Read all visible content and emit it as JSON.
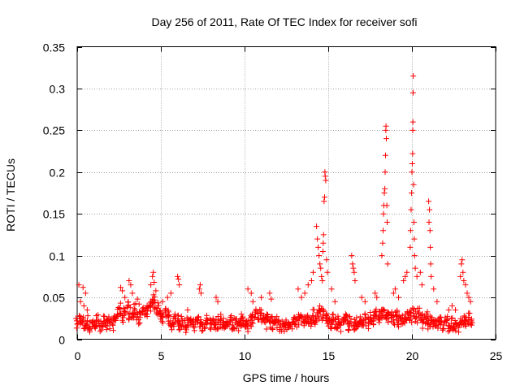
{
  "chart_data": {
    "type": "scatter",
    "title": "Day 256 of 2011, Rate Of TEC Index for receiver sofi",
    "xlabel": "GPS time / hours",
    "ylabel": "ROTI / TECUs",
    "xlim": [
      0,
      25
    ],
    "ylim": [
      0,
      0.35
    ],
    "x_ticks": [
      0,
      5,
      10,
      15,
      20,
      25
    ],
    "x_tick_labels": [
      "0",
      "5",
      "10",
      "15",
      "20",
      "25"
    ],
    "y_ticks": [
      0,
      0.05,
      0.1,
      0.15,
      0.2,
      0.25,
      0.3,
      0.35
    ],
    "y_tick_labels": [
      "0",
      "0.05",
      "0.1",
      "0.15",
      "0.2",
      "0.25",
      "0.3",
      "0.35"
    ],
    "grid": true,
    "marker": "+",
    "color": "#ff0000",
    "baseline_points": [
      [
        0.0,
        0.018
      ],
      [
        0.15,
        0.025
      ],
      [
        0.3,
        0.02
      ],
      [
        0.45,
        0.016
      ],
      [
        0.6,
        0.022
      ],
      [
        0.75,
        0.014
      ],
      [
        0.9,
        0.02
      ],
      [
        1.05,
        0.017
      ],
      [
        1.2,
        0.023
      ],
      [
        1.35,
        0.015
      ],
      [
        1.5,
        0.019
      ],
      [
        1.65,
        0.021
      ],
      [
        1.8,
        0.016
      ],
      [
        1.95,
        0.02
      ],
      [
        2.1,
        0.018
      ],
      [
        2.25,
        0.024
      ],
      [
        2.4,
        0.03
      ],
      [
        2.55,
        0.036
      ],
      [
        2.7,
        0.028
      ],
      [
        2.85,
        0.033
      ],
      [
        3.0,
        0.038
      ],
      [
        3.15,
        0.031
      ],
      [
        3.3,
        0.027
      ],
      [
        3.45,
        0.035
      ],
      [
        3.6,
        0.03
      ],
      [
        3.75,
        0.026
      ],
      [
        3.9,
        0.033
      ],
      [
        4.05,
        0.029
      ],
      [
        4.2,
        0.034
      ],
      [
        4.35,
        0.04
      ],
      [
        4.5,
        0.048
      ],
      [
        4.65,
        0.044
      ],
      [
        4.8,
        0.037
      ],
      [
        4.95,
        0.03
      ],
      [
        5.1,
        0.026
      ],
      [
        5.25,
        0.034
      ],
      [
        5.4,
        0.028
      ],
      [
        5.55,
        0.022
      ],
      [
        5.7,
        0.019
      ],
      [
        5.85,
        0.025
      ],
      [
        6.0,
        0.021
      ],
      [
        6.15,
        0.018
      ],
      [
        6.3,
        0.022
      ],
      [
        6.45,
        0.016
      ],
      [
        6.6,
        0.02
      ],
      [
        6.75,
        0.017
      ],
      [
        6.9,
        0.021
      ],
      [
        7.05,
        0.018
      ],
      [
        7.2,
        0.022
      ],
      [
        7.35,
        0.019
      ],
      [
        7.5,
        0.016
      ],
      [
        7.65,
        0.02
      ],
      [
        7.8,
        0.023
      ],
      [
        7.95,
        0.018
      ],
      [
        8.1,
        0.021
      ],
      [
        8.25,
        0.017
      ],
      [
        8.4,
        0.02
      ],
      [
        8.55,
        0.022
      ],
      [
        8.7,
        0.018
      ],
      [
        8.85,
        0.016
      ],
      [
        9.0,
        0.019
      ],
      [
        9.15,
        0.021
      ],
      [
        9.3,
        0.017
      ],
      [
        9.45,
        0.02
      ],
      [
        9.6,
        0.018
      ],
      [
        9.75,
        0.022
      ],
      [
        9.9,
        0.019
      ],
      [
        10.05,
        0.021
      ],
      [
        10.2,
        0.017
      ],
      [
        10.35,
        0.023
      ],
      [
        10.5,
        0.027
      ],
      [
        10.65,
        0.03
      ],
      [
        10.8,
        0.025
      ],
      [
        10.95,
        0.028
      ],
      [
        11.1,
        0.024
      ],
      [
        11.25,
        0.02
      ],
      [
        11.4,
        0.026
      ],
      [
        11.55,
        0.022
      ],
      [
        11.7,
        0.019
      ],
      [
        11.85,
        0.024
      ],
      [
        12.0,
        0.02
      ],
      [
        12.15,
        0.017
      ],
      [
        12.3,
        0.015
      ],
      [
        12.45,
        0.018
      ],
      [
        12.6,
        0.014
      ],
      [
        12.75,
        0.017
      ],
      [
        12.9,
        0.02
      ],
      [
        13.05,
        0.025
      ],
      [
        13.2,
        0.022
      ],
      [
        13.35,
        0.027
      ],
      [
        13.5,
        0.024
      ],
      [
        13.65,
        0.021
      ],
      [
        13.8,
        0.026
      ],
      [
        13.95,
        0.023
      ],
      [
        14.1,
        0.028
      ],
      [
        14.25,
        0.025
      ],
      [
        14.4,
        0.03
      ],
      [
        14.55,
        0.034
      ],
      [
        14.7,
        0.029
      ],
      [
        14.85,
        0.025
      ],
      [
        15.0,
        0.021
      ],
      [
        15.15,
        0.019
      ],
      [
        15.3,
        0.022
      ],
      [
        15.45,
        0.018
      ],
      [
        15.6,
        0.021
      ],
      [
        15.75,
        0.017
      ],
      [
        15.9,
        0.02
      ],
      [
        16.05,
        0.023
      ],
      [
        16.2,
        0.018
      ],
      [
        16.35,
        0.021
      ],
      [
        16.5,
        0.016
      ],
      [
        16.65,
        0.02
      ],
      [
        16.8,
        0.018
      ],
      [
        16.95,
        0.022
      ],
      [
        17.1,
        0.019
      ],
      [
        17.25,
        0.024
      ],
      [
        17.4,
        0.02
      ],
      [
        17.55,
        0.026
      ],
      [
        17.7,
        0.022
      ],
      [
        17.85,
        0.028
      ],
      [
        18.0,
        0.025
      ],
      [
        18.15,
        0.03
      ],
      [
        18.3,
        0.034
      ],
      [
        18.45,
        0.029
      ],
      [
        18.6,
        0.025
      ],
      [
        18.75,
        0.028
      ],
      [
        18.9,
        0.023
      ],
      [
        19.05,
        0.027
      ],
      [
        19.2,
        0.022
      ],
      [
        19.35,
        0.026
      ],
      [
        19.5,
        0.021
      ],
      [
        19.65,
        0.025
      ],
      [
        19.8,
        0.03
      ],
      [
        19.95,
        0.028
      ],
      [
        20.1,
        0.031
      ],
      [
        20.25,
        0.026
      ],
      [
        20.4,
        0.03
      ],
      [
        20.55,
        0.024
      ],
      [
        20.7,
        0.021
      ],
      [
        20.85,
        0.025
      ],
      [
        21.0,
        0.02
      ],
      [
        21.15,
        0.023
      ],
      [
        21.3,
        0.019
      ],
      [
        21.45,
        0.022
      ],
      [
        21.6,
        0.018
      ],
      [
        21.75,
        0.021
      ],
      [
        21.9,
        0.017
      ],
      [
        22.05,
        0.02
      ],
      [
        22.2,
        0.016
      ],
      [
        22.35,
        0.019
      ],
      [
        22.5,
        0.015
      ],
      [
        22.65,
        0.018
      ],
      [
        22.8,
        0.014
      ],
      [
        22.95,
        0.017
      ],
      [
        23.1,
        0.02
      ],
      [
        23.25,
        0.023
      ],
      [
        23.4,
        0.026
      ],
      [
        23.55,
        0.022
      ]
    ],
    "spike_points": [
      [
        0.1,
        0.065
      ],
      [
        0.2,
        0.045
      ],
      [
        0.35,
        0.062
      ],
      [
        0.4,
        0.04
      ],
      [
        0.5,
        0.055
      ],
      [
        0.6,
        0.035
      ],
      [
        2.6,
        0.062
      ],
      [
        2.7,
        0.058
      ],
      [
        2.85,
        0.05
      ],
      [
        3.1,
        0.07
      ],
      [
        3.2,
        0.065
      ],
      [
        3.3,
        0.055
      ],
      [
        3.6,
        0.048
      ],
      [
        3.7,
        0.042
      ],
      [
        4.4,
        0.065
      ],
      [
        4.5,
        0.075
      ],
      [
        4.55,
        0.08
      ],
      [
        4.6,
        0.068
      ],
      [
        4.7,
        0.058
      ],
      [
        5.1,
        0.045
      ],
      [
        5.4,
        0.05
      ],
      [
        5.6,
        0.055
      ],
      [
        6.0,
        0.075
      ],
      [
        6.05,
        0.072
      ],
      [
        6.1,
        0.065
      ],
      [
        6.6,
        0.035
      ],
      [
        7.3,
        0.06
      ],
      [
        7.35,
        0.065
      ],
      [
        7.4,
        0.055
      ],
      [
        8.3,
        0.05
      ],
      [
        8.4,
        0.045
      ],
      [
        10.2,
        0.06
      ],
      [
        10.4,
        0.055
      ],
      [
        10.5,
        0.045
      ],
      [
        11.0,
        0.05
      ],
      [
        11.5,
        0.055
      ],
      [
        11.6,
        0.048
      ],
      [
        13.2,
        0.06
      ],
      [
        13.4,
        0.05
      ],
      [
        13.6,
        0.055
      ],
      [
        13.8,
        0.065
      ],
      [
        14.0,
        0.07
      ],
      [
        14.1,
        0.08
      ],
      [
        14.3,
        0.135
      ],
      [
        14.35,
        0.12
      ],
      [
        14.4,
        0.11
      ],
      [
        14.45,
        0.1
      ],
      [
        14.5,
        0.09
      ],
      [
        14.55,
        0.085
      ],
      [
        14.6,
        0.075
      ],
      [
        14.65,
        0.07
      ],
      [
        14.8,
        0.2
      ],
      [
        14.82,
        0.195
      ],
      [
        14.85,
        0.19
      ],
      [
        14.78,
        0.17
      ],
      [
        14.75,
        0.165
      ],
      [
        14.72,
        0.125
      ],
      [
        14.7,
        0.115
      ],
      [
        14.68,
        0.105
      ],
      [
        14.9,
        0.095
      ],
      [
        14.95,
        0.08
      ],
      [
        15.2,
        0.06
      ],
      [
        15.4,
        0.045
      ],
      [
        16.4,
        0.1
      ],
      [
        16.45,
        0.09
      ],
      [
        16.5,
        0.085
      ],
      [
        16.55,
        0.08
      ],
      [
        16.6,
        0.07
      ],
      [
        17.0,
        0.05
      ],
      [
        17.2,
        0.045
      ],
      [
        17.8,
        0.055
      ],
      [
        17.9,
        0.05
      ],
      [
        18.2,
        0.1
      ],
      [
        18.25,
        0.115
      ],
      [
        18.28,
        0.13
      ],
      [
        18.3,
        0.15
      ],
      [
        18.32,
        0.16
      ],
      [
        18.35,
        0.175
      ],
      [
        18.38,
        0.18
      ],
      [
        18.4,
        0.2
      ],
      [
        18.42,
        0.22
      ],
      [
        18.44,
        0.25
      ],
      [
        18.45,
        0.255
      ],
      [
        18.47,
        0.24
      ],
      [
        18.5,
        0.16
      ],
      [
        18.52,
        0.14
      ],
      [
        18.55,
        0.09
      ],
      [
        18.9,
        0.055
      ],
      [
        19.0,
        0.06
      ],
      [
        19.2,
        0.05
      ],
      [
        19.5,
        0.07
      ],
      [
        19.6,
        0.075
      ],
      [
        19.7,
        0.08
      ],
      [
        19.9,
        0.11
      ],
      [
        19.92,
        0.13
      ],
      [
        19.95,
        0.155
      ],
      [
        19.98,
        0.175
      ],
      [
        20.0,
        0.2
      ],
      [
        20.02,
        0.21
      ],
      [
        20.04,
        0.222
      ],
      [
        20.05,
        0.25
      ],
      [
        20.06,
        0.26
      ],
      [
        20.07,
        0.295
      ],
      [
        20.08,
        0.315
      ],
      [
        20.1,
        0.185
      ],
      [
        20.12,
        0.14
      ],
      [
        20.14,
        0.12
      ],
      [
        20.16,
        0.1
      ],
      [
        20.2,
        0.085
      ],
      [
        20.3,
        0.075
      ],
      [
        20.5,
        0.08
      ],
      [
        20.6,
        0.065
      ],
      [
        21.0,
        0.165
      ],
      [
        21.05,
        0.155
      ],
      [
        21.02,
        0.14
      ],
      [
        21.08,
        0.13
      ],
      [
        21.1,
        0.11
      ],
      [
        21.12,
        0.09
      ],
      [
        21.15,
        0.075
      ],
      [
        21.3,
        0.06
      ],
      [
        21.5,
        0.045
      ],
      [
        22.2,
        0.035
      ],
      [
        22.4,
        0.04
      ],
      [
        22.6,
        0.035
      ],
      [
        22.9,
        0.075
      ],
      [
        22.95,
        0.09
      ],
      [
        23.0,
        0.095
      ],
      [
        23.05,
        0.08
      ],
      [
        23.1,
        0.07
      ],
      [
        23.2,
        0.065
      ],
      [
        23.3,
        0.055
      ],
      [
        23.4,
        0.05
      ],
      [
        23.5,
        0.045
      ]
    ]
  }
}
